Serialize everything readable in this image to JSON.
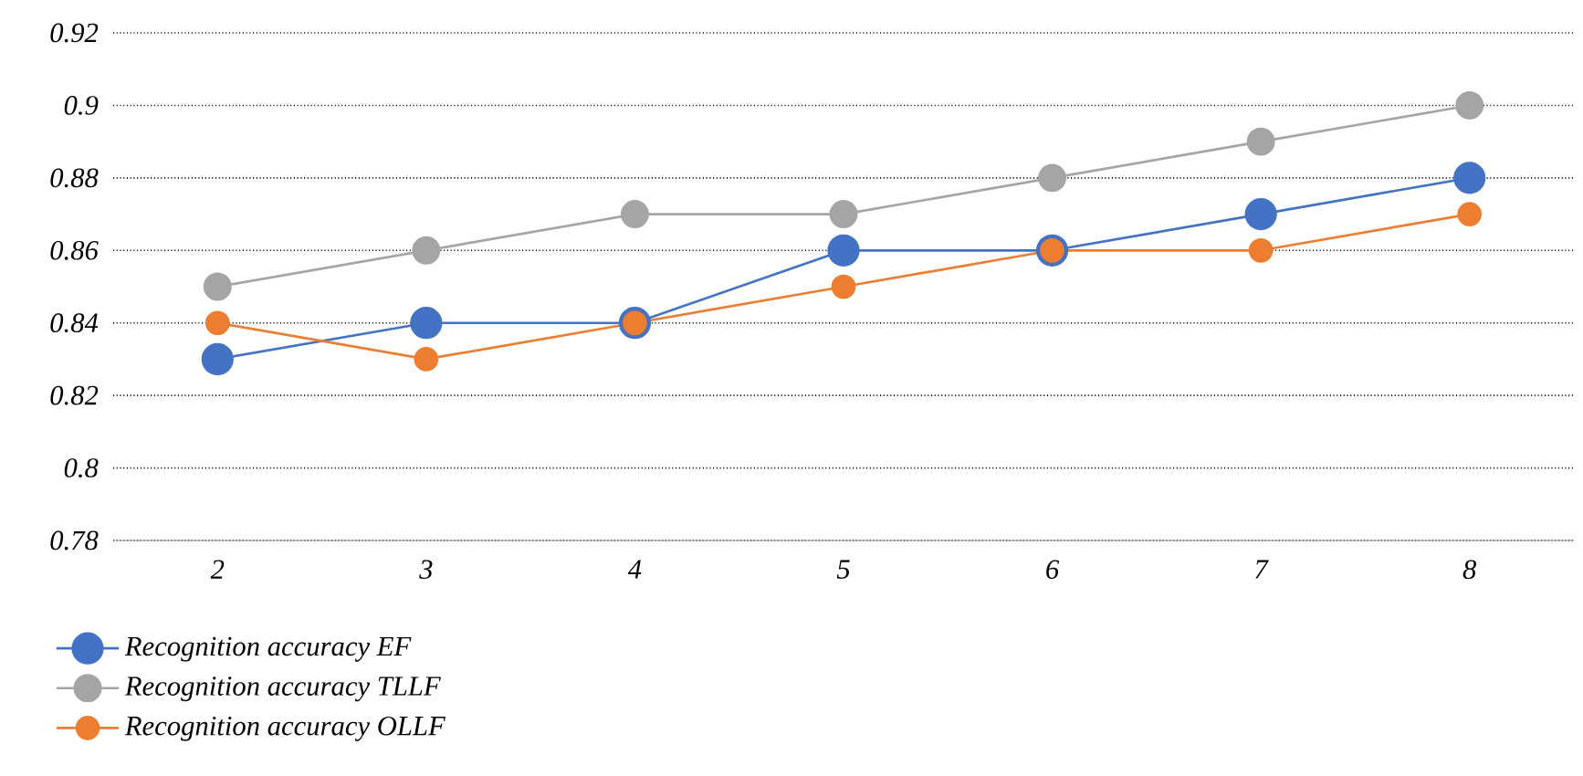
{
  "chart_data": {
    "type": "line",
    "categories": [
      "2",
      "3",
      "4",
      "5",
      "6",
      "7",
      "8"
    ],
    "series": [
      {
        "name": "Recognition accuracy EF",
        "color": "#4472c4",
        "values": [
          0.83,
          0.84,
          0.84,
          0.86,
          0.86,
          0.87,
          0.88
        ]
      },
      {
        "name": "Recognition accuracy TLLF",
        "color": "#a5a5a5",
        "values": [
          0.85,
          0.86,
          0.87,
          0.87,
          0.88,
          0.89,
          0.9
        ]
      },
      {
        "name": "Recognition accuracy OLLF",
        "color": "#ed7d31",
        "values": [
          0.84,
          0.83,
          0.84,
          0.85,
          0.86,
          0.86,
          0.87
        ]
      }
    ],
    "ylim": [
      0.78,
      0.92
    ],
    "yticks": [
      0.78,
      0.8,
      0.82,
      0.84,
      0.86,
      0.88,
      0.9,
      0.92
    ],
    "grid": "y",
    "legend": "bottom left",
    "marker": "circle",
    "line_style": "solid"
  }
}
